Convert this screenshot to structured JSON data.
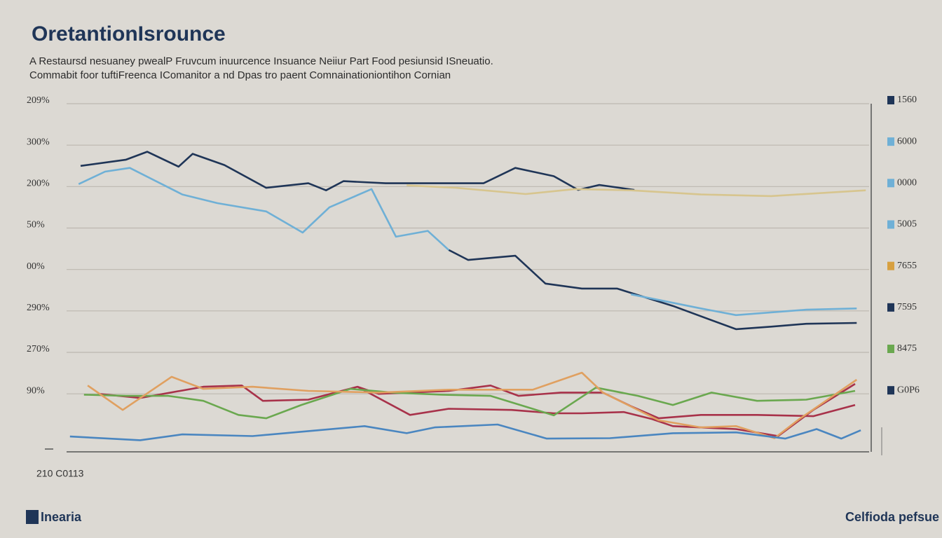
{
  "chart_data": {
    "type": "line",
    "title": "OretantionIsrounce",
    "subtitle": [
      "A Restaursd nesuaney pwealP Fruvcum inuurcence Insuance Neiiur Part Food pesiunsid ISneuatio.",
      "Commabit foor tuftiFreenca IComanitor a nd Dpas tro paent Comnainationiontihon Cornian"
    ],
    "note": "210 C0113",
    "xlim": [
      0,
      24
    ],
    "ylim": [
      -0.4,
      8
    ],
    "yticks": [
      {
        "value": 8,
        "label": "209%"
      },
      {
        "value": 7,
        "label": "300%"
      },
      {
        "value": 6,
        "label": "200%"
      },
      {
        "value": 5,
        "label": "50%"
      },
      {
        "value": 4,
        "label": "00%"
      },
      {
        "value": 3,
        "label": "290%"
      },
      {
        "value": 2,
        "label": "270%"
      },
      {
        "value": 1,
        "label": "90%"
      }
    ],
    "y2lim": [
      -0.4,
      8
    ],
    "y2ticks": [
      {
        "value": 8,
        "label": "1560"
      },
      {
        "value": 7,
        "label": "6000"
      },
      {
        "value": 6,
        "label": "0000"
      },
      {
        "value": 5,
        "label": "5005"
      },
      {
        "value": 4,
        "label": "7655"
      },
      {
        "value": 3,
        "label": "7595"
      },
      {
        "value": 2,
        "label": "8475"
      },
      {
        "value": 1,
        "label": "G0P6"
      }
    ],
    "grid": true,
    "series": [
      {
        "color": "#1f3557",
        "x": [
          0.42,
          1.78,
          2.41,
          3.35,
          3.77,
          4.72,
          5.97,
          7.23,
          7.76,
          8.28,
          9.54,
          11.64,
          12.47,
          13.42,
          14.57,
          15.3,
          15.93,
          16.98
        ],
        "values": [
          6.5,
          6.65,
          6.84,
          6.48,
          6.79,
          6.52,
          5.97,
          6.08,
          5.91,
          6.13,
          6.08,
          6.08,
          6.08,
          6.45,
          6.25,
          5.92,
          6.04,
          5.92
        ]
      },
      {
        "color": "#1f3557",
        "x": [
          11.43,
          12.01,
          13.42,
          14.32,
          15.41,
          16.46,
          18.13,
          20.02,
          21.07,
          22.12,
          23.63
        ],
        "values": [
          4.47,
          4.23,
          4.33,
          3.66,
          3.54,
          3.54,
          3.12,
          2.56,
          2.62,
          2.69,
          2.71
        ]
      },
      {
        "color": "#6fb0d6",
        "x": [
          0.36,
          1.15,
          1.89,
          3.46,
          4.51,
          5.97,
          7.06,
          7.86,
          9.12,
          9.85,
          10.8,
          11.43,
          14.0,
          16.88,
          18.97,
          20.02,
          22.12,
          23.63
        ],
        "values": [
          6.06,
          6.36,
          6.45,
          5.81,
          5.6,
          5.4,
          4.89,
          5.5,
          5.94,
          4.79,
          4.93,
          4.47,
          null,
          3.4,
          3.06,
          2.9,
          3.03,
          3.06
        ]
      },
      {
        "color": "#d7c58e",
        "x": [
          10.17,
          11.64,
          13.73,
          15.2,
          16.88,
          18.97,
          21.07,
          23.9
        ],
        "values": [
          6.03,
          5.97,
          5.82,
          5.94,
          5.91,
          5.81,
          5.77,
          5.91
        ]
      },
      {
        "color": "#a8324a",
        "x": [
          0.94,
          2.2,
          4.09,
          5.24,
          5.87,
          7.23,
          8.7,
          9.33,
          11.43,
          12.68,
          13.52,
          14.78,
          16.04,
          16.88,
          17.71,
          18.97,
          20.65,
          22.33,
          23.58
        ],
        "values": [
          1.0,
          0.9,
          1.17,
          1.2,
          0.83,
          0.86,
          1.17,
          1.0,
          1.07,
          1.2,
          0.95,
          1.03,
          1.03,
          0.7,
          0.41,
          0.49,
          0.49,
          0.46,
          0.73
        ]
      },
      {
        "color": "#a8324a",
        "x": [
          8.7,
          10.27,
          11.43,
          13.31,
          14.57,
          15.41,
          16.67,
          17.51,
          18.13,
          20.02,
          21.28,
          22.33,
          23.58
        ],
        "values": [
          1.17,
          0.49,
          0.64,
          0.61,
          0.53,
          0.53,
          0.56,
          0.39,
          0.22,
          0.15,
          -0.02,
          0.61,
          1.24
        ]
      },
      {
        "color": "#6aa84f",
        "x": [
          0.52,
          1.78,
          3.04,
          4.09,
          5.14,
          5.97,
          7.02,
          8.49,
          9.75,
          11.22,
          12.68,
          14.57,
          15.83,
          17.09,
          18.13,
          19.29,
          20.65,
          22.12,
          23.58
        ],
        "values": [
          0.98,
          0.95,
          0.95,
          0.83,
          0.49,
          0.41,
          0.73,
          1.12,
          1.03,
          0.98,
          0.95,
          0.48,
          1.15,
          0.95,
          0.73,
          1.03,
          0.83,
          0.86,
          1.07
        ]
      },
      {
        "color": "#e0a060",
        "x": [
          0.63,
          1.68,
          3.14,
          4.09,
          5.56,
          7.23,
          9.33,
          11.43,
          13.94,
          15.41,
          16.04,
          17.71,
          18.97,
          20.02,
          21.17,
          21.91,
          23.63
        ],
        "values": [
          1.2,
          0.61,
          1.41,
          1.12,
          1.17,
          1.07,
          1.03,
          1.1,
          1.1,
          1.51,
          1.03,
          0.36,
          0.19,
          0.22,
          -0.07,
          0.39,
          1.34
        ]
      },
      {
        "color": "#4a86c0",
        "x": [
          0.1,
          2.2,
          3.46,
          5.56,
          7.23,
          8.91,
          10.17,
          11.01,
          12.89,
          14.36,
          16.25,
          18.13,
          20.02,
          21.49,
          22.43,
          23.17,
          23.75
        ],
        "values": [
          -0.03,
          -0.12,
          0.02,
          -0.02,
          0.1,
          0.22,
          0.05,
          0.19,
          0.26,
          -0.08,
          -0.07,
          0.05,
          0.07,
          -0.08,
          0.15,
          -0.08,
          0.12
        ]
      }
    ]
  },
  "footer": {
    "brand": "Inearia",
    "source": "Celfioda pefsue"
  }
}
